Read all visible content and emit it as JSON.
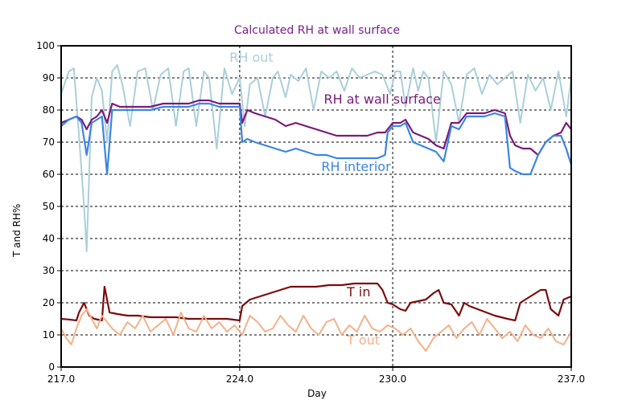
{
  "chart_data": {
    "type": "line",
    "title": "Calculated RH at wall surface",
    "xlabel": "Day",
    "ylabel": "T and RH%",
    "xlim": [
      217,
      237
    ],
    "ylim": [
      0,
      100
    ],
    "xticks": [
      "217.0",
      "224.0",
      "230.0",
      "237.0"
    ],
    "yticks": [
      0,
      10,
      20,
      30,
      40,
      50,
      60,
      70,
      80,
      90,
      100
    ],
    "grid": "dashed",
    "colors": {
      "rh_out": "#aacfda",
      "rh_wall": "#7a1a7a",
      "rh_interior": "#3a86e0",
      "t_in": "#7a0e0e",
      "t_out": "#f4b088",
      "title": "#7a1f8a"
    },
    "series": [
      {
        "name": "RH out",
        "label_pos": [
          223.6,
          95
        ],
        "x": [
          217.0,
          217.3,
          217.5,
          217.7,
          217.9,
          218.0,
          218.2,
          218.4,
          218.6,
          218.8,
          219.0,
          219.2,
          219.4,
          219.7,
          220.0,
          220.3,
          220.6,
          220.9,
          221.2,
          221.5,
          221.8,
          222.0,
          222.3,
          222.6,
          222.8,
          223.1,
          223.4,
          223.7,
          224.0,
          224.2,
          224.4,
          224.7,
          225.0,
          225.3,
          225.5,
          225.8,
          226.0,
          226.3,
          226.6,
          226.9,
          227.2,
          227.5,
          227.8,
          228.1,
          228.4,
          228.7,
          229.0,
          229.3,
          229.6,
          229.9,
          230.1,
          230.3,
          230.5,
          230.8,
          231.0,
          231.2,
          231.4,
          231.7,
          232.0,
          232.3,
          232.6,
          232.9,
          233.2,
          233.5,
          233.8,
          234.1,
          234.4,
          234.7,
          235.0,
          235.3,
          235.6,
          235.9,
          236.2,
          236.5,
          236.8,
          237.0
        ],
        "values": [
          85,
          92,
          93,
          72,
          50,
          36,
          84,
          90,
          86,
          70,
          92,
          94,
          88,
          75,
          92,
          93,
          80,
          91,
          93,
          75,
          92,
          93,
          75,
          92,
          90,
          68,
          93,
          85,
          90,
          75,
          88,
          90,
          78,
          90,
          92,
          84,
          91,
          89,
          93,
          80,
          92,
          90,
          92,
          86,
          93,
          90,
          91,
          92,
          91,
          85,
          92,
          92,
          81,
          93,
          86,
          92,
          90,
          70,
          92,
          88,
          76,
          91,
          93,
          85,
          91,
          88,
          90,
          92,
          76,
          91,
          86,
          90,
          80,
          92,
          78,
          90
        ]
      },
      {
        "name": "RH at wall surface",
        "label_pos": [
          227.3,
          82
        ],
        "x": [
          217.0,
          217.3,
          217.6,
          217.8,
          218.0,
          218.2,
          218.4,
          218.6,
          218.8,
          219.0,
          219.3,
          219.6,
          220.0,
          220.5,
          221.0,
          221.5,
          222.0,
          222.4,
          222.8,
          223.2,
          223.6,
          224.0,
          224.1,
          224.3,
          224.6,
          225.0,
          225.4,
          225.8,
          226.2,
          226.6,
          227.0,
          227.4,
          227.8,
          228.2,
          228.6,
          229.0,
          229.4,
          229.7,
          229.8,
          230.0,
          230.3,
          230.5,
          230.8,
          231.1,
          231.4,
          231.7,
          232.0,
          232.3,
          232.6,
          232.9,
          233.2,
          233.6,
          234.0,
          234.4,
          234.6,
          234.8,
          235.1,
          235.4,
          235.7,
          236.0,
          236.3,
          236.6,
          236.8,
          237.0
        ],
        "values": [
          76,
          77,
          78,
          77,
          74,
          77,
          78,
          80,
          76,
          82,
          81,
          81,
          81,
          81,
          82,
          82,
          82,
          83,
          83,
          82,
          82,
          82,
          76,
          80,
          79,
          78,
          77,
          75,
          76,
          75,
          74,
          73,
          72,
          72,
          72,
          72,
          73,
          73,
          74,
          76,
          76,
          77,
          73,
          72,
          71,
          69,
          68,
          76,
          76,
          79,
          79,
          79,
          80,
          79,
          72,
          69,
          68,
          68,
          66,
          70,
          72,
          73,
          76,
          74
        ]
      },
      {
        "name": "RH interior",
        "label_pos": [
          227.2,
          61
        ],
        "x": [
          217.0,
          217.3,
          217.6,
          217.8,
          218.0,
          218.2,
          218.4,
          218.6,
          218.8,
          219.0,
          219.3,
          219.6,
          220.0,
          220.5,
          221.0,
          221.5,
          222.0,
          222.4,
          222.8,
          223.2,
          223.6,
          224.0,
          224.1,
          224.3,
          224.6,
          225.0,
          225.4,
          225.8,
          226.2,
          226.6,
          227.0,
          227.4,
          227.8,
          228.2,
          228.6,
          229.0,
          229.4,
          229.7,
          229.8,
          230.0,
          230.3,
          230.5,
          230.8,
          231.1,
          231.4,
          231.7,
          232.0,
          232.3,
          232.6,
          232.9,
          233.2,
          233.6,
          234.0,
          234.4,
          234.6,
          234.8,
          235.1,
          235.4,
          235.7,
          236.0,
          236.3,
          236.6,
          236.8,
          237.0
        ],
        "values": [
          75,
          77,
          78,
          76,
          66,
          76,
          77,
          78,
          60,
          80,
          80,
          80,
          80,
          80,
          81,
          81,
          81,
          82,
          82,
          81,
          81,
          81,
          70,
          71,
          70,
          69,
          68,
          67,
          68,
          67,
          66,
          66,
          65,
          65,
          65,
          65,
          65,
          66,
          73,
          75,
          75,
          76,
          70,
          69,
          68,
          67,
          64,
          75,
          74,
          78,
          78,
          78,
          79,
          78,
          62,
          61,
          60,
          60,
          66,
          70,
          72,
          72,
          68,
          63
        ]
      },
      {
        "name": "T in",
        "label_pos": [
          228.2,
          22
        ],
        "x": [
          217.0,
          217.3,
          217.6,
          217.7,
          217.9,
          218.1,
          218.3,
          218.6,
          218.7,
          218.9,
          219.2,
          219.6,
          220.0,
          220.5,
          221.0,
          221.5,
          222.0,
          222.5,
          223.0,
          223.5,
          224.0,
          224.1,
          224.4,
          224.8,
          225.2,
          225.6,
          226.0,
          226.5,
          227.0,
          227.5,
          228.0,
          228.5,
          229.0,
          229.4,
          229.6,
          229.8,
          230.0,
          230.3,
          230.5,
          230.7,
          231.0,
          231.3,
          231.6,
          231.8,
          232.0,
          232.3,
          232.6,
          232.8,
          233.0,
          233.5,
          234.0,
          234.5,
          234.8,
          235.0,
          235.4,
          235.8,
          236.0,
          236.2,
          236.5,
          236.7,
          237.0
        ],
        "values": [
          15,
          14.8,
          14.5,
          17,
          20,
          16,
          15,
          14.5,
          25,
          17,
          16.5,
          16,
          16,
          15.5,
          15.5,
          15.5,
          15,
          15,
          15,
          15,
          14.5,
          19,
          21,
          22,
          23,
          24,
          25,
          25,
          25,
          25.5,
          25.5,
          26,
          26,
          26,
          24,
          20,
          19.5,
          18,
          17.5,
          20,
          20.5,
          21,
          23,
          24,
          20,
          19.5,
          16,
          20,
          19,
          17.5,
          16,
          15,
          14.5,
          20,
          22,
          24,
          24,
          18,
          16,
          21,
          22
        ]
      },
      {
        "name": "T out",
        "label_pos": [
          228.2,
          7
        ],
        "x": [
          217.0,
          217.2,
          217.4,
          217.6,
          217.8,
          218.0,
          218.2,
          218.4,
          218.6,
          218.8,
          219.0,
          219.3,
          219.6,
          219.9,
          220.2,
          220.5,
          220.8,
          221.1,
          221.4,
          221.7,
          222.0,
          222.3,
          222.6,
          222.9,
          223.2,
          223.5,
          223.8,
          224.1,
          224.4,
          224.7,
          225.0,
          225.3,
          225.6,
          225.9,
          226.2,
          226.5,
          226.8,
          227.1,
          227.4,
          227.7,
          228.0,
          228.3,
          228.6,
          228.9,
          229.2,
          229.5,
          229.8,
          230.1,
          230.4,
          230.7,
          231.0,
          231.3,
          231.6,
          231.9,
          232.2,
          232.5,
          232.8,
          233.1,
          233.4,
          233.7,
          234.0,
          234.3,
          234.6,
          234.9,
          235.2,
          235.5,
          235.8,
          236.1,
          236.4,
          236.7,
          237.0
        ],
        "values": [
          12,
          9,
          7,
          12,
          16,
          18,
          15,
          12,
          16,
          14,
          12,
          10,
          14,
          12,
          16,
          11,
          13,
          15,
          10,
          17,
          12,
          11,
          16,
          12,
          14,
          11,
          13,
          10,
          16,
          14,
          11,
          12,
          16,
          13,
          11,
          16,
          12,
          10,
          14,
          15,
          10,
          13,
          11,
          16,
          12,
          11,
          13,
          12,
          10,
          12,
          8,
          5,
          9,
          11,
          13,
          9,
          12,
          14,
          10,
          15,
          12,
          9,
          11,
          8,
          13,
          10,
          9,
          12,
          8,
          7,
          11
        ]
      }
    ]
  }
}
